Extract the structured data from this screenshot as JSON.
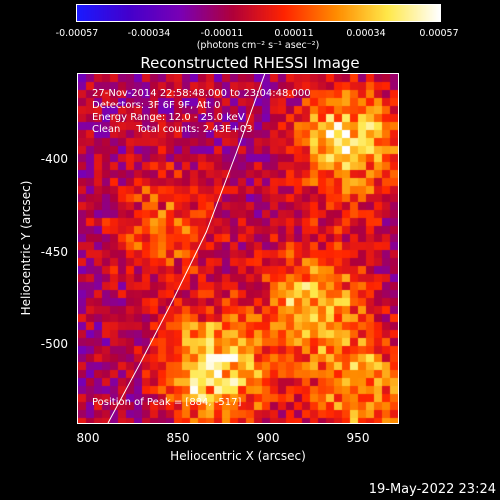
{
  "colorbar": {
    "ticks": [
      "-0.00057",
      "-0.00034",
      "-0.00011",
      "0.00011",
      "0.00034",
      "0.00057"
    ],
    "unit": "(photons cm⁻² s⁻¹ asec⁻²)",
    "colors": [
      "#1a1aff",
      "#4400cc",
      "#7a00b4",
      "#b0003a",
      "#ff2400",
      "#ff8c00",
      "#ffe84a",
      "#ffffff"
    ]
  },
  "chart_data": {
    "type": "heatmap",
    "title": "Reconstructed RHESSI Image",
    "xlabel": "Heliocentric X (arcsec)",
    "ylabel": "Heliocentric Y (arcsec)",
    "xlim": [
      793,
      985
    ],
    "ylim": [
      -547,
      -357
    ],
    "x_ticks": [
      "800",
      "850",
      "900",
      "950"
    ],
    "y_ticks": [
      "-400",
      "-450",
      "-500"
    ],
    "value_range": [
      -0.00057,
      0.00057
    ],
    "info_lines": [
      "27-Nov-2014 22:58:48.000 to 23:04:48.000",
      "Detectors: 3F 6F 9F, Att 0",
      "Energy Range: 12.0 - 25.0 keV",
      "Clean     Total counts: 2.43E+03"
    ],
    "peak_label": "Position of Peak = [884, -517]",
    "peak": [
      884,
      -517
    ],
    "sources": [
      {
        "x": 955,
        "y": -395,
        "intensity": 0.00052
      },
      {
        "x": 935,
        "y": -480,
        "intensity": 0.00044
      },
      {
        "x": 875,
        "y": -518,
        "intensity": 0.00057
      },
      {
        "x": 845,
        "y": -440,
        "intensity": 0.0003
      },
      {
        "x": 965,
        "y": -530,
        "intensity": 0.0004
      }
    ],
    "limb": [
      [
        811,
        -547
      ],
      [
        830,
        -515
      ],
      [
        850,
        -480
      ],
      [
        870,
        -443
      ],
      [
        888,
        -400
      ],
      [
        905,
        -357
      ]
    ]
  },
  "footer": {
    "date": "19-May-2022 23:24"
  }
}
